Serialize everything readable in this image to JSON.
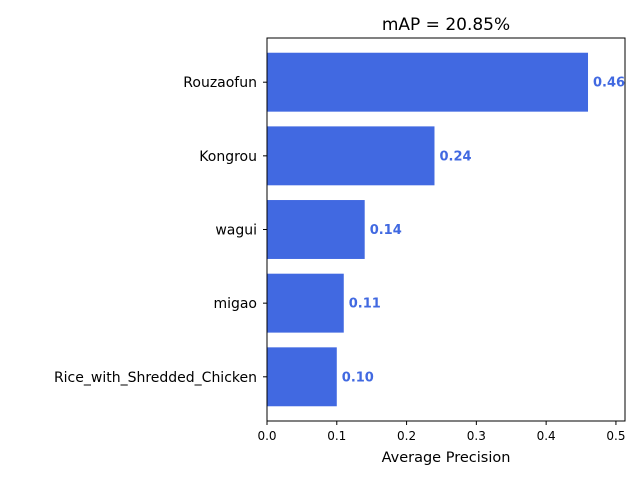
{
  "chart_data": {
    "type": "bar",
    "orientation": "horizontal",
    "title": "mAP = 20.85%",
    "xlabel": "Average Precision",
    "ylabel": "",
    "categories": [
      "Rouzaofun",
      "Kongrou",
      "wagui",
      "migao",
      "Rice_with_Shredded_Chicken"
    ],
    "values": [
      0.46,
      0.24,
      0.14,
      0.11,
      0.1
    ],
    "value_labels": [
      "0.46",
      "0.24",
      "0.14",
      "0.11",
      "0.10"
    ],
    "x_ticks": [
      "0.0",
      "0.1",
      "0.2",
      "0.3",
      "0.4",
      "0.5"
    ],
    "xlim": [
      0,
      0.513
    ],
    "grid": false,
    "colors": {
      "bar": "#4169e1",
      "value_label": "#4169e1",
      "axis": "#000000"
    }
  }
}
